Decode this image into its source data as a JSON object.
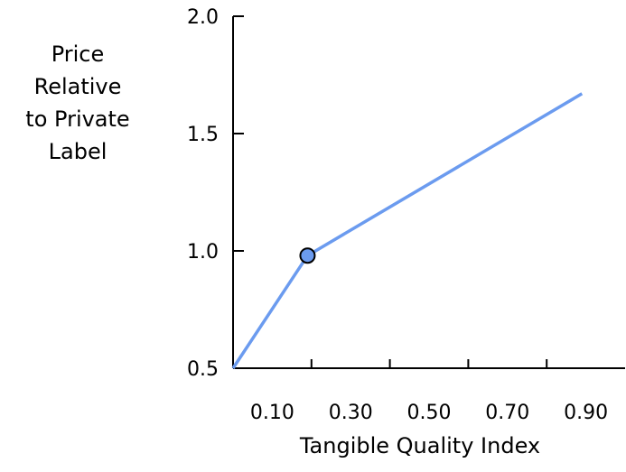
{
  "chart_data": {
    "type": "line",
    "title": "",
    "ylabel_lines": [
      "Price",
      "Relative",
      "to Private",
      "Label"
    ],
    "xlabel": "Tangible Quality Index",
    "xlim": [
      0.0,
      1.0
    ],
    "ylim": [
      0.5,
      2.0
    ],
    "x_ticks": [
      0.1,
      0.3,
      0.5,
      0.7,
      0.9
    ],
    "x_tick_labels": [
      "0.10",
      "0.30",
      "0.50",
      "0.70",
      "0.90"
    ],
    "y_ticks": [
      0.5,
      1.0,
      1.5,
      2.0
    ],
    "y_tick_labels": [
      "0.5",
      "1.0",
      "1.5",
      "2.0"
    ],
    "series": [
      {
        "x": [
          0.0,
          0.19,
          0.89
        ],
        "y": [
          0.5,
          0.98,
          1.67
        ]
      }
    ],
    "highlight_point": {
      "x": 0.19,
      "y": 0.98
    },
    "grid": false,
    "colors": {
      "line": "#6b9bef",
      "marker_fill": "#6b9bef",
      "marker_stroke": "#000000",
      "axis": "#000000"
    }
  }
}
